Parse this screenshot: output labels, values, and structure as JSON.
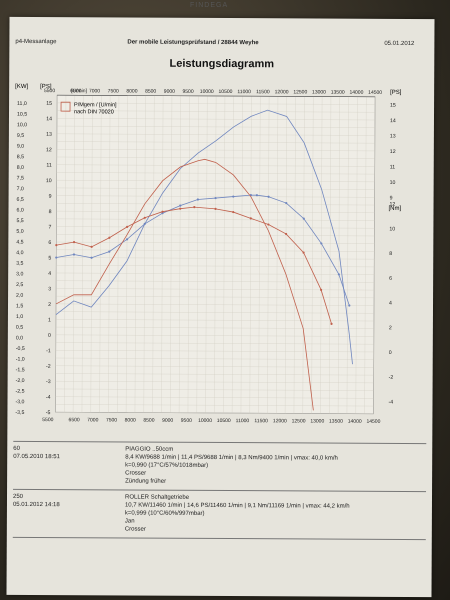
{
  "header": {
    "left": "p4-Messanlage",
    "center": "Der mobile Leistungsprüfstand  / 28844 Weyhe",
    "right": "05.01.2012",
    "watermark": "FINDEGA"
  },
  "title": "Leistungsdiagramm",
  "legend": {
    "line1": "P/Mgem / [U/min]",
    "line2": "nach DIN 70020"
  },
  "runs": [
    {
      "code": "60",
      "datetime": "07.05.2010  18:51",
      "model": "PIAGGIO ..50ccm",
      "values": "8,4 KW/9688 1/min  |  11,4 PS/9688 1/min  |  8,3 Nm/9400 1/min  |  vmax: 40,0 km/h",
      "correction": "k=0,990 (17°C/57%/1018mbar)",
      "name": "Crosser",
      "note": "Zündung früher"
    },
    {
      "code": "250",
      "datetime": "05.01.2012  14:18",
      "model": "ROLLER Schaltgetriebe",
      "values": "10,7 KW/11460 1/min  |  14,6 PS/11460 1/min  |  9,1 Nm/11169 1/min  |  vmax: 44,2 km/h",
      "correction": "k=0,999 (10°C/60%/997mbar)",
      "name": "Jan",
      "note": "Crosser"
    }
  ],
  "chart_data": {
    "type": "line",
    "x_unit_label": "[U/min]",
    "xlim": [
      5500,
      14500
    ],
    "x_ticks": [
      5500,
      6500,
      7000,
      7500,
      8000,
      8500,
      9000,
      9500,
      10000,
      10500,
      11000,
      11500,
      12000,
      12500,
      13000,
      13500,
      14000,
      14500
    ],
    "left_axes": {
      "kw": {
        "label": "[KW]",
        "ticks": [
          "11,0",
          "10,5",
          "10,0",
          "9,5",
          "9,0",
          "8,5",
          "8,0",
          "7,5",
          "7,0",
          "6,5",
          "6,0",
          "5,5",
          "5,0",
          "4,5",
          "4,0",
          "3,5",
          "3,0",
          "2,5",
          "2,0",
          "1,5",
          "1,0",
          "0,5",
          "0,0",
          "-0,5",
          "-1,0",
          "-1,5",
          "-2,0",
          "-2,5",
          "-3,0",
          "-3,5"
        ]
      },
      "ps": {
        "label": "[PS]",
        "ticks": [
          "15",
          "14",
          "13",
          "12",
          "11",
          "10",
          "9",
          "8",
          "7",
          "6",
          "5",
          "4",
          "3",
          "2",
          "1",
          "0",
          "-1",
          "-2",
          "-3",
          "-4",
          "-5"
        ]
      }
    },
    "right_axes": {
      "ps": {
        "label": "[PS]",
        "ticks": [
          "15",
          "14",
          "13",
          "12",
          "11",
          "10",
          "9"
        ]
      },
      "nm": {
        "label": "[Nm]",
        "ticks": [
          "12",
          "10",
          "8",
          "6",
          "4",
          "2",
          "0",
          "-2",
          "-4"
        ]
      }
    },
    "ylim_ps": [
      -5,
      15.5
    ],
    "series": [
      {
        "name": "250",
        "color": "#6f86bf",
        "kind": "power",
        "x": [
          5500,
          6000,
          6500,
          7000,
          7500,
          8000,
          8500,
          9000,
          9500,
          10000,
          10500,
          11000,
          11460,
          12000,
          12500,
          13000,
          13500,
          13800,
          13900
        ],
        "y": [
          1.3,
          2.2,
          1.8,
          3.2,
          4.8,
          7.2,
          9.2,
          10.8,
          11.8,
          12.6,
          13.5,
          14.2,
          14.6,
          14.2,
          12.5,
          9.5,
          5.5,
          0.2,
          -1.8
        ]
      },
      {
        "name": "250",
        "color": "#6f86bf",
        "kind": "torque",
        "x": [
          5500,
          6000,
          6500,
          7000,
          7500,
          8000,
          8500,
          9000,
          9500,
          10000,
          10500,
          11000,
          11169,
          11500,
          12000,
          12500,
          13000,
          13500,
          13800
        ],
        "y": [
          5.0,
          5.2,
          5.0,
          5.4,
          6.2,
          7.2,
          7.9,
          8.4,
          8.8,
          8.9,
          9.0,
          9.1,
          9.1,
          9.0,
          8.6,
          7.6,
          6.0,
          4.0,
          2.0
        ]
      },
      {
        "name": "60",
        "color": "#c0604c",
        "kind": "power",
        "x": [
          5500,
          6000,
          6500,
          7000,
          7500,
          8000,
          8500,
          9000,
          9500,
          9688,
          10000,
          10500,
          11000,
          11500,
          12000,
          12500,
          12800
        ],
        "y": [
          2.0,
          2.6,
          2.6,
          4.6,
          6.5,
          8.5,
          10.0,
          10.9,
          11.3,
          11.4,
          11.2,
          10.4,
          9.0,
          6.8,
          4.0,
          0.5,
          -4.8
        ]
      },
      {
        "name": "60",
        "color": "#c0604c",
        "kind": "torque",
        "x": [
          5500,
          6000,
          6500,
          7000,
          7500,
          8000,
          8500,
          9000,
          9400,
          10000,
          10500,
          11000,
          11500,
          12000,
          12500,
          13000,
          13300
        ],
        "y": [
          5.8,
          6.0,
          5.7,
          6.3,
          7.0,
          7.6,
          8.0,
          8.2,
          8.3,
          8.2,
          8.0,
          7.6,
          7.2,
          6.6,
          5.4,
          3.0,
          0.8
        ]
      }
    ]
  }
}
